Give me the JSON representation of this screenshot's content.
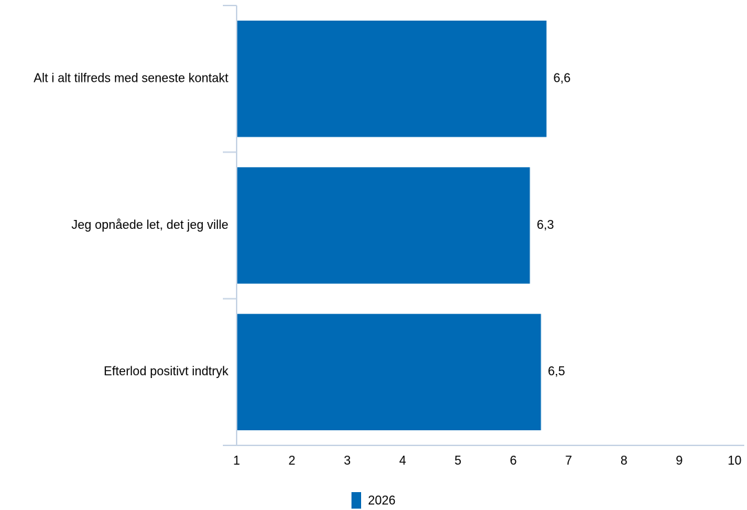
{
  "chart_data": {
    "type": "bar",
    "orientation": "horizontal",
    "categories": [
      "Alt i alt tilfreds med seneste kontakt",
      "Jeg opnåede let, det jeg ville",
      "Efterlod positivt indtryk"
    ],
    "series": [
      {
        "name": "2026",
        "values": [
          6.6,
          6.3,
          6.5
        ],
        "labels": [
          "6,6",
          "6,3",
          "6,5"
        ]
      }
    ],
    "x_ticks": [
      "1",
      "2",
      "3",
      "4",
      "5",
      "6",
      "7",
      "8",
      "9",
      "10"
    ],
    "xlim": [
      1,
      10
    ],
    "grid": false,
    "legend_position": "bottom",
    "colors": {
      "bar": "#006ab5",
      "axis": "#c5d3e4"
    }
  }
}
